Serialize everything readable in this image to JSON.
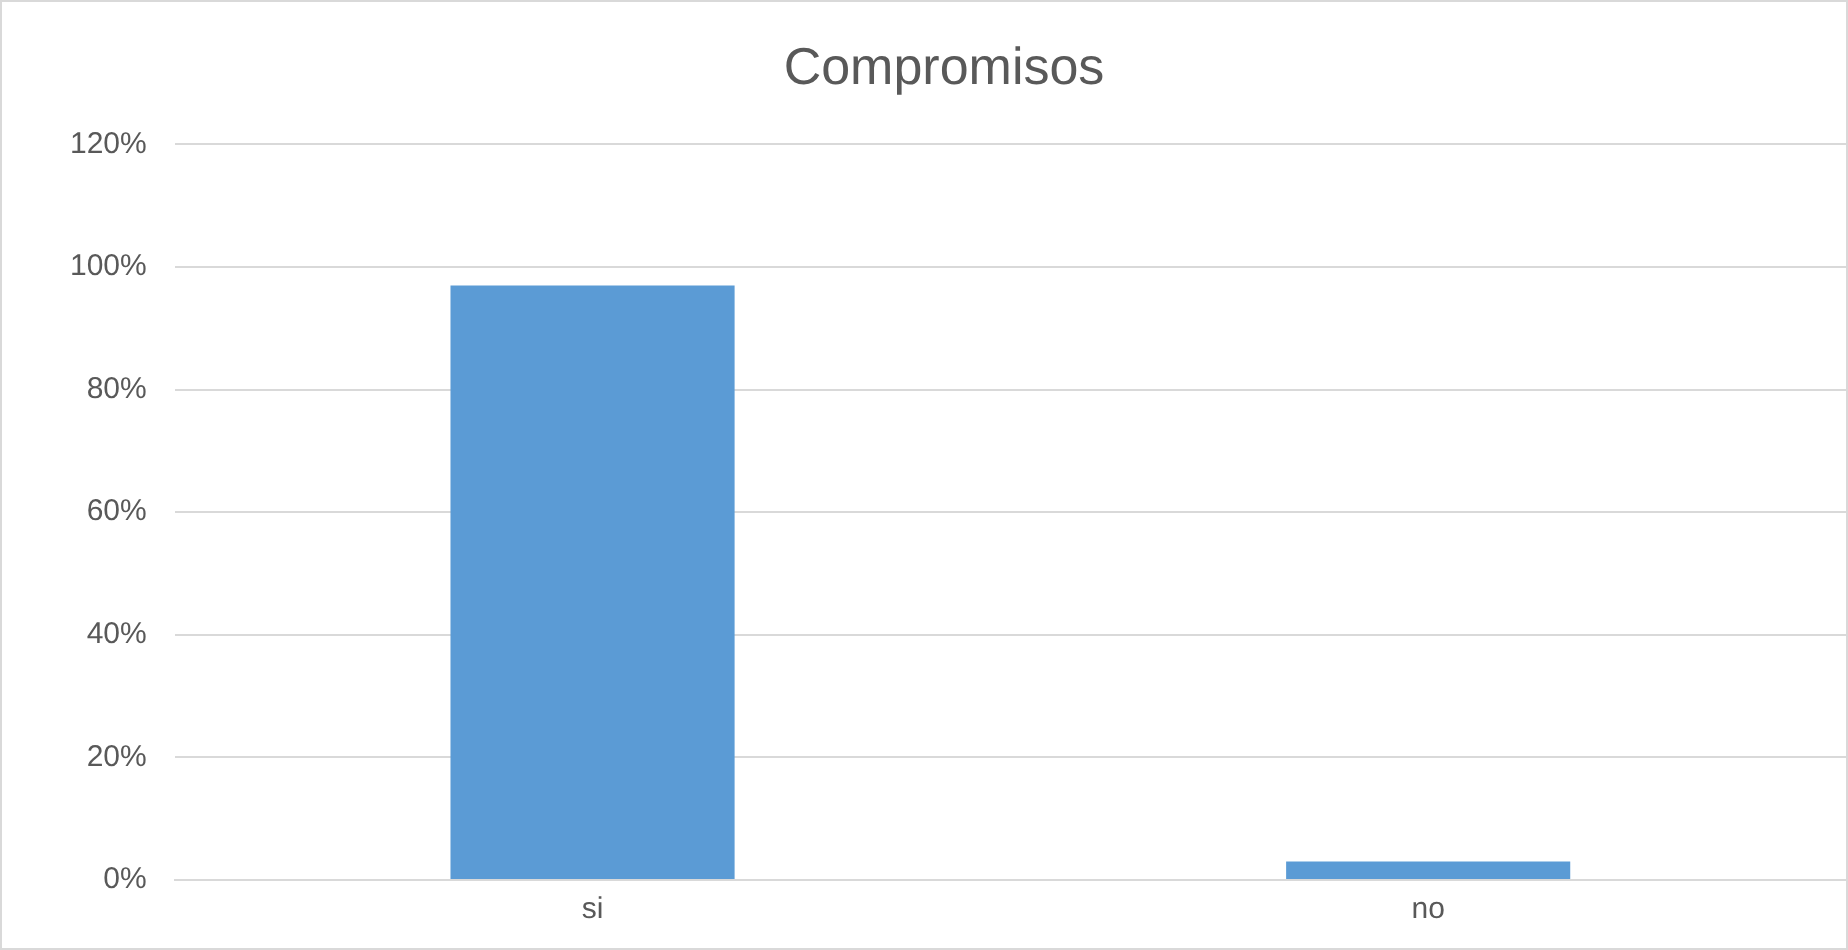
{
  "chart_data": {
    "type": "bar",
    "title": "Compromisos",
    "categories": [
      "si",
      "no"
    ],
    "values": [
      97,
      3
    ],
    "color": "#5b9bd5",
    "ylim": [
      0,
      120
    ],
    "yticks": [
      {
        "value": 0,
        "label": "0%"
      },
      {
        "value": 20,
        "label": "20%"
      },
      {
        "value": 40,
        "label": "40%"
      },
      {
        "value": 60,
        "label": "60%"
      },
      {
        "value": 80,
        "label": "80%"
      },
      {
        "value": 100,
        "label": "100%"
      },
      {
        "value": 120,
        "label": "120%"
      }
    ],
    "grid": "y",
    "legend": false
  }
}
